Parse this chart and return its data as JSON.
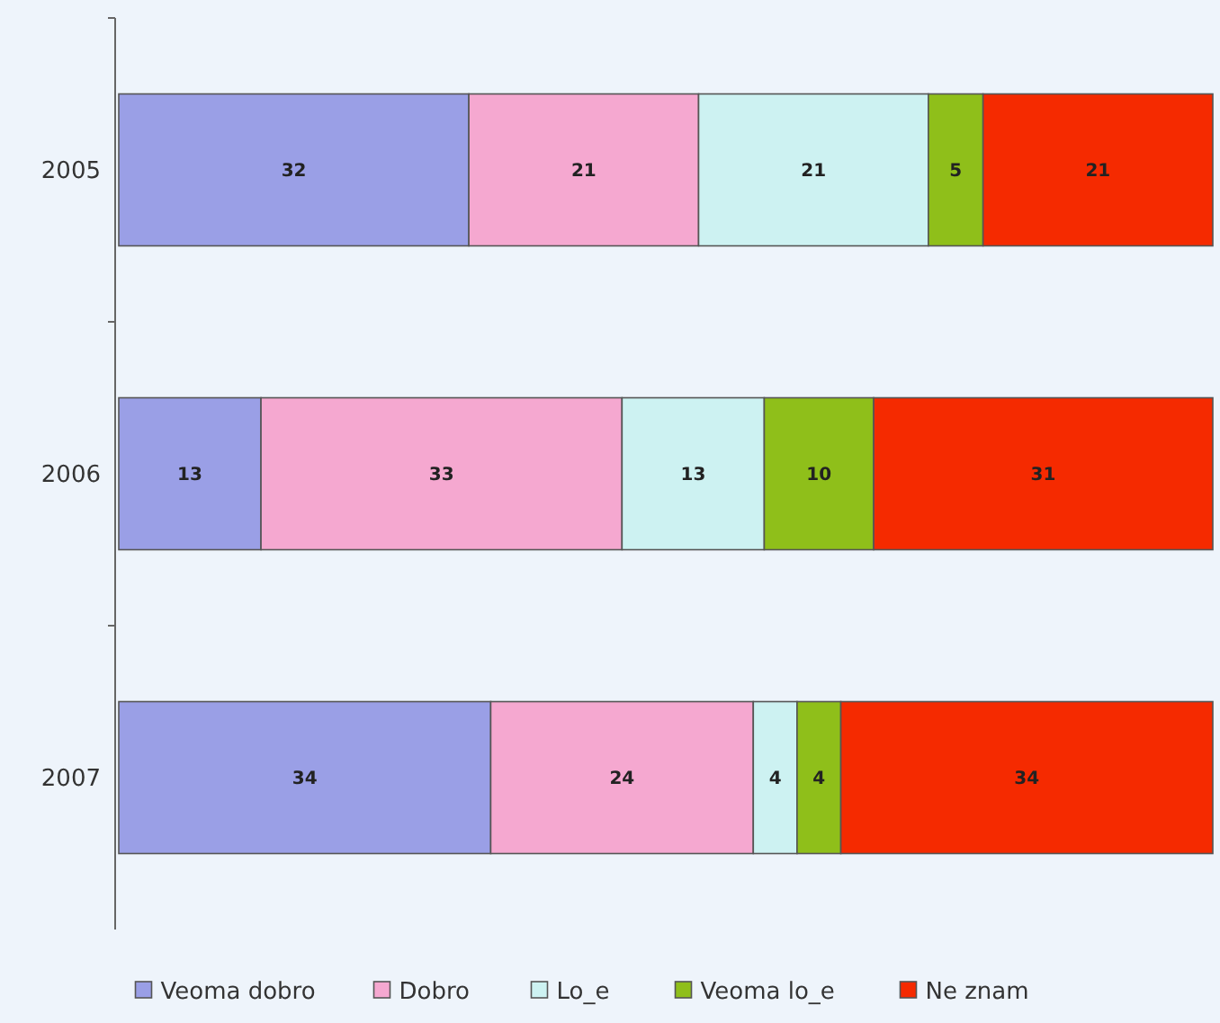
{
  "chart_data": {
    "type": "bar",
    "orientation": "horizontal",
    "stacked": true,
    "data_labels": true,
    "legend": "bottom",
    "categories": [
      "2005",
      "2006",
      "2007"
    ],
    "series": [
      {
        "name": "Veoma dobro",
        "color": "#9a9fe6",
        "values": [
          32,
          13,
          34
        ]
      },
      {
        "name": "Dobro",
        "color": "#f5a8d0",
        "values": [
          21,
          33,
          24
        ]
      },
      {
        "name": "Lo_e",
        "color": "#cdf2f2",
        "values": [
          21,
          13,
          4
        ]
      },
      {
        "name": "Veoma lo_e",
        "color": "#8fbf1a",
        "values": [
          5,
          10,
          4
        ]
      },
      {
        "name": "Ne znam",
        "color": "#f52a00",
        "values": [
          21,
          31,
          34
        ]
      }
    ]
  }
}
